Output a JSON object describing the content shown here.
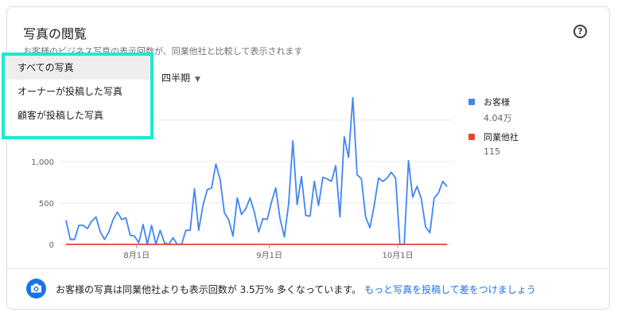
{
  "card": {
    "title": "写真の閲覧",
    "subtitle": "お客様のビジネス写真の表示回数が、同業他社と比較して表示されます",
    "help_icon": "help-circle-icon"
  },
  "period_select": {
    "value": "四半期"
  },
  "dropdown": {
    "items": [
      "すべての写真",
      "オーナーが投稿した写真",
      "顧客が投稿した写真"
    ],
    "selected_index": 0
  },
  "legend": [
    {
      "name": "お客様",
      "value": "4.04万",
      "color": "#4285f4"
    },
    {
      "name": "同業他社",
      "value": "115",
      "color": "#ea4335"
    }
  ],
  "footer": {
    "icon": "camera-icon",
    "text": "お客様の写真は同業他社よりも表示回数が 3.5万% 多くなっています。",
    "link": "もっと写真を投稿して差をつけましょう"
  },
  "chart_data": {
    "type": "line",
    "x_tick_labels": [
      "8月1日",
      "9月1日",
      "10月1日"
    ],
    "y_tick_labels": [
      "0",
      "500",
      "1,000"
    ],
    "ylim": [
      0,
      1700
    ],
    "grid": true,
    "series": [
      {
        "name": "お客様",
        "color": "#4285f4",
        "values": [
          290,
          60,
          60,
          230,
          230,
          190,
          280,
          330,
          150,
          60,
          150,
          300,
          390,
          300,
          320,
          110,
          100,
          20,
          240,
          0,
          230,
          0,
          170,
          20,
          0,
          80,
          0,
          0,
          170,
          170,
          670,
          170,
          470,
          660,
          680,
          970,
          780,
          380,
          300,
          100,
          560,
          360,
          430,
          560,
          390,
          150,
          310,
          300,
          510,
          680,
          310,
          90,
          490,
          1250,
          480,
          820,
          350,
          340,
          760,
          470,
          810,
          790,
          760,
          950,
          330,
          1300,
          1050,
          1770,
          840,
          790,
          330,
          200,
          470,
          800,
          760,
          800,
          870,
          800,
          0,
          0,
          1010,
          570,
          700,
          550,
          210,
          140,
          560,
          620,
          760,
          700
        ],
        "x_range": [
          "7月16日",
          "10月6日"
        ]
      },
      {
        "name": "同業他社",
        "color": "#ea4335",
        "values": [
          0,
          0
        ],
        "note": ""
      }
    ]
  }
}
